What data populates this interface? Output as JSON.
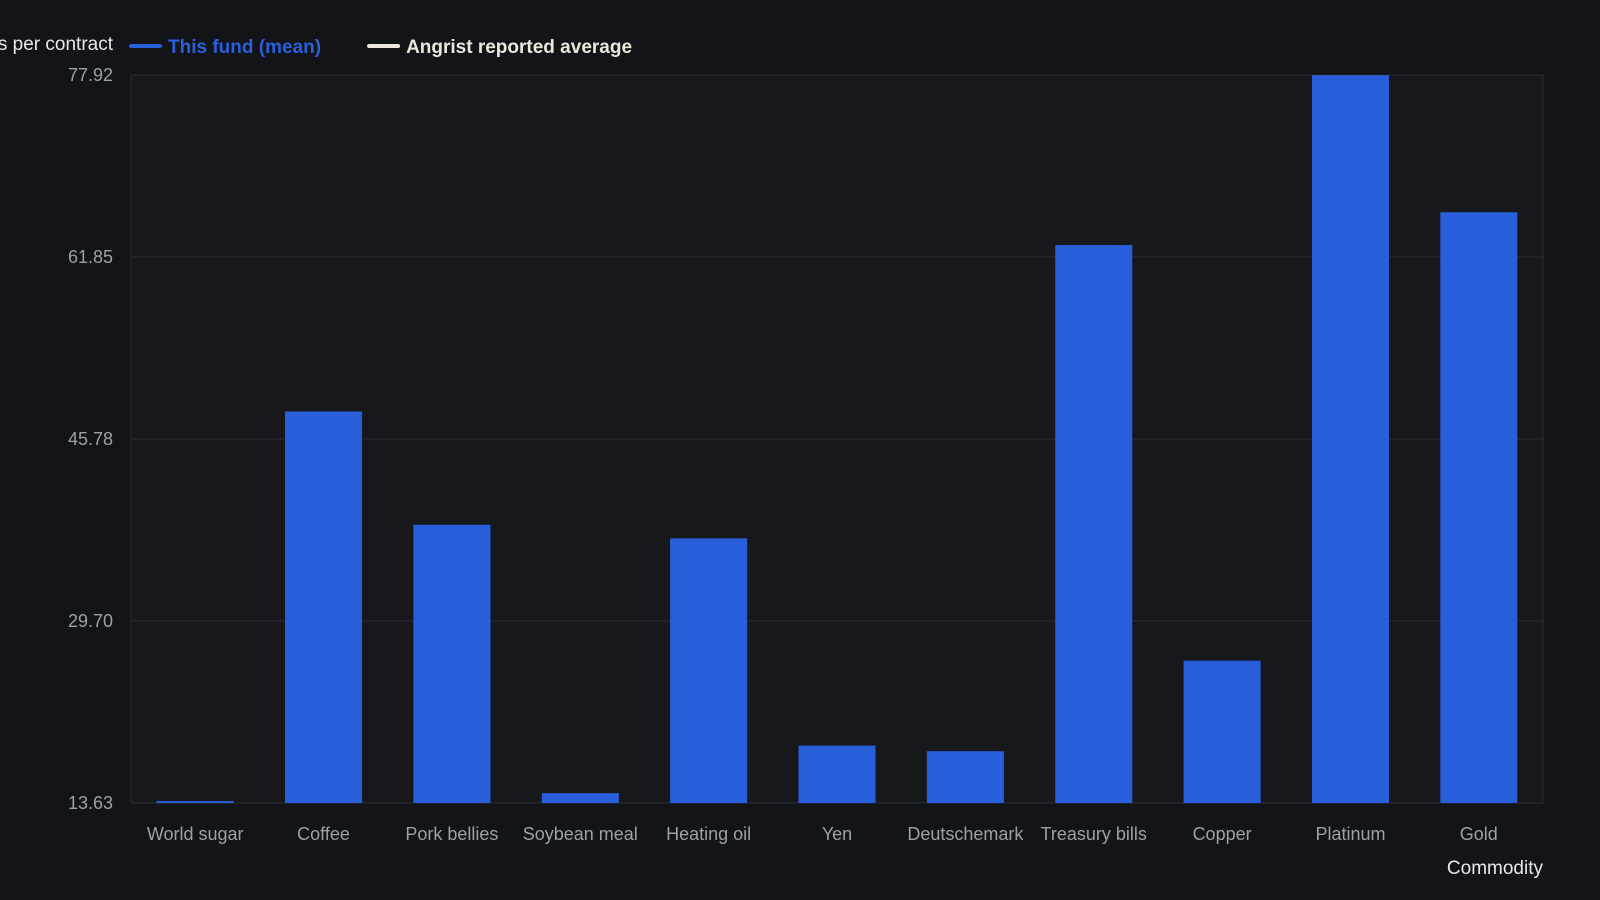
{
  "chart_data": {
    "type": "bar",
    "title": "",
    "ylabel": "s per contract",
    "xlabel": "Commodity",
    "ylim": [
      13.63,
      77.92
    ],
    "yticks": [
      "13.63",
      "29.70",
      "45.78",
      "61.85",
      "77.92"
    ],
    "grid": true,
    "legend_position": "top-left",
    "legend": [
      {
        "label": "This fund (mean)",
        "color": "#2a5fdc"
      },
      {
        "label": "Angrist reported average",
        "color": "#ece7dc"
      }
    ],
    "categories": [
      "World sugar",
      "Coffee",
      "Pork bellies",
      "Soybean meal",
      "Heating oil",
      "Yen",
      "Deutschemark",
      "Treasury bills",
      "Copper",
      "Platinum",
      "Gold"
    ],
    "series": [
      {
        "name": "This fund (mean)",
        "color": "#2a5fdc",
        "values": [
          13.8,
          48.2,
          38.2,
          14.5,
          37.0,
          18.7,
          18.2,
          62.9,
          26.2,
          77.9,
          65.8
        ]
      }
    ]
  }
}
